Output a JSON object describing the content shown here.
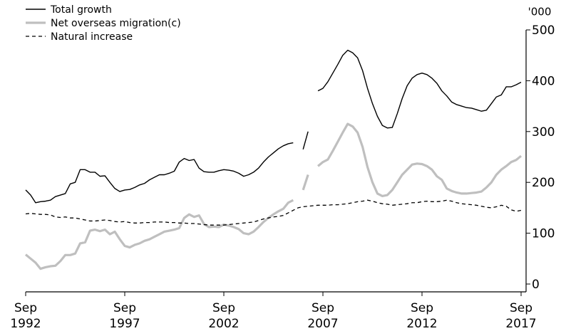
{
  "chart_data": {
    "type": "line",
    "y_unit_label": "'000",
    "x": [
      1992.75,
      1993,
      1993.25,
      1993.5,
      1993.75,
      1994,
      1994.25,
      1994.5,
      1994.75,
      1995,
      1995.25,
      1995.5,
      1995.75,
      1996,
      1996.25,
      1996.5,
      1996.75,
      1997,
      1997.25,
      1997.5,
      1997.75,
      1998,
      1998.25,
      1998.5,
      1998.75,
      1999,
      1999.25,
      1999.5,
      1999.75,
      2000,
      2000.25,
      2000.5,
      2000.75,
      2001,
      2001.25,
      2001.5,
      2001.75,
      2002,
      2002.25,
      2002.5,
      2002.75,
      2003,
      2003.25,
      2003.5,
      2003.75,
      2004,
      2004.25,
      2004.5,
      2004.75,
      2005,
      2005.25,
      2005.5,
      2005.75,
      2006,
      2006.25,
      2006.5,
      2006.75,
      2007,
      2007.25,
      2007.5,
      2007.75,
      2008,
      2008.25,
      2008.5,
      2008.75,
      2009,
      2009.25,
      2009.5,
      2009.75,
      2010,
      2010.25,
      2010.5,
      2010.75,
      2011,
      2011.25,
      2011.5,
      2011.75,
      2012,
      2012.25,
      2012.5,
      2012.75,
      2013,
      2013.25,
      2013.5,
      2013.75,
      2014,
      2014.25,
      2014.5,
      2014.75,
      2015,
      2015.25,
      2015.5,
      2015.75,
      2016,
      2016.25,
      2016.5,
      2016.75,
      2017,
      2017.25,
      2017.5,
      2017.75
    ],
    "series": [
      {
        "name": "Total growth",
        "color": "#000000",
        "style": "solid",
        "values": [
          185,
          175,
          160,
          162,
          163,
          165,
          172,
          175,
          178,
          197,
          200,
          225,
          225,
          220,
          220,
          212,
          213,
          200,
          188,
          182,
          185,
          186,
          190,
          195,
          198,
          205,
          210,
          215,
          215,
          218,
          222,
          240,
          247,
          243,
          245,
          228,
          221,
          220,
          220,
          223,
          225,
          224,
          222,
          218,
          212,
          215,
          220,
          228,
          240,
          250,
          258,
          266,
          272,
          276,
          278,
          null,
          265,
          300,
          null,
          380,
          385,
          398,
          415,
          432,
          450,
          460,
          455,
          445,
          420,
          385,
          355,
          330,
          312,
          307,
          308,
          335,
          365,
          390,
          405,
          412,
          415,
          412,
          405,
          395,
          380,
          370,
          358,
          353,
          350,
          347,
          346,
          343,
          340,
          342,
          355,
          368,
          372,
          388,
          388,
          392,
          397
        ]
      },
      {
        "name": "Net overseas migration(c)",
        "color": "#bfbfbf",
        "style": "thick",
        "values": [
          58,
          50,
          42,
          30,
          33,
          35,
          36,
          45,
          57,
          57,
          60,
          80,
          82,
          105,
          107,
          104,
          107,
          98,
          103,
          88,
          75,
          72,
          77,
          80,
          85,
          88,
          93,
          98,
          103,
          105,
          107,
          110,
          130,
          137,
          132,
          135,
          118,
          112,
          113,
          112,
          117,
          115,
          112,
          108,
          100,
          98,
          103,
          112,
          122,
          130,
          137,
          143,
          148,
          160,
          165,
          null,
          185,
          215,
          null,
          232,
          240,
          245,
          262,
          280,
          298,
          315,
          310,
          298,
          270,
          230,
          200,
          178,
          173,
          175,
          185,
          200,
          215,
          225,
          235,
          237,
          236,
          232,
          225,
          212,
          205,
          188,
          183,
          180,
          178,
          178,
          179,
          180,
          182,
          190,
          200,
          215,
          225,
          232,
          240,
          244,
          252
        ]
      },
      {
        "name": "Natural increase",
        "color": "#000000",
        "style": "dashed",
        "values": [
          138,
          139,
          138,
          137,
          137,
          136,
          132,
          131,
          132,
          130,
          130,
          128,
          126,
          124,
          124,
          125,
          126,
          125,
          123,
          122,
          123,
          121,
          120,
          120,
          121,
          121,
          122,
          122,
          122,
          121,
          121,
          120,
          120,
          119,
          119,
          118,
          117,
          116,
          116,
          116,
          116,
          117,
          118,
          119,
          120,
          121,
          122,
          125,
          128,
          130,
          132,
          133,
          135,
          140,
          145,
          150,
          152,
          153,
          154,
          155,
          155,
          155,
          156,
          156,
          157,
          158,
          160,
          162,
          163,
          165,
          163,
          160,
          158,
          157,
          155,
          156,
          157,
          158,
          160,
          160,
          162,
          163,
          162,
          162,
          163,
          165,
          163,
          160,
          158,
          157,
          156,
          155,
          153,
          151,
          150,
          152,
          155,
          153,
          146,
          143,
          145
        ]
      }
    ],
    "xlim": [
      1992.75,
      2017.75
    ],
    "xticks": [
      {
        "value": 1992.75,
        "label": [
          "Sep",
          "1992"
        ]
      },
      {
        "value": 1997.75,
        "label": [
          "Sep",
          "1997"
        ]
      },
      {
        "value": 2002.75,
        "label": [
          "Sep",
          "2002"
        ]
      },
      {
        "value": 2007.75,
        "label": [
          "Sep",
          "2007"
        ]
      },
      {
        "value": 2012.75,
        "label": [
          "Sep",
          "2012"
        ]
      },
      {
        "value": 2017.75,
        "label": [
          "Sep",
          "2017"
        ]
      }
    ],
    "ylim": [
      0,
      500
    ],
    "yticks": [
      0,
      100,
      200,
      300,
      400,
      500
    ],
    "y_axis_side": "right",
    "legend": "upper left"
  }
}
